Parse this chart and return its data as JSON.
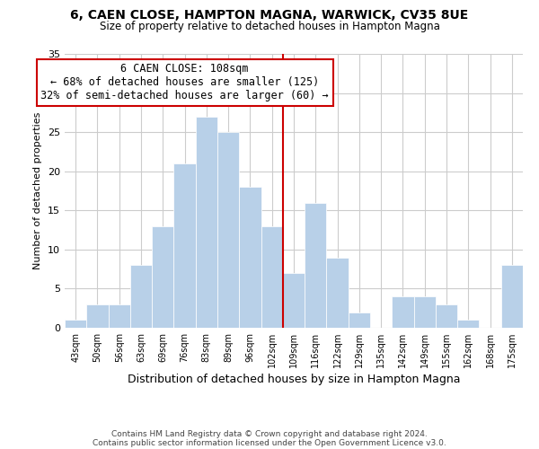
{
  "title1": "6, CAEN CLOSE, HAMPTON MAGNA, WARWICK, CV35 8UE",
  "title2": "Size of property relative to detached houses in Hampton Magna",
  "xlabel": "Distribution of detached houses by size in Hampton Magna",
  "ylabel": "Number of detached properties",
  "bar_labels": [
    "43sqm",
    "50sqm",
    "56sqm",
    "63sqm",
    "69sqm",
    "76sqm",
    "83sqm",
    "89sqm",
    "96sqm",
    "102sqm",
    "109sqm",
    "116sqm",
    "122sqm",
    "129sqm",
    "135sqm",
    "142sqm",
    "149sqm",
    "155sqm",
    "162sqm",
    "168sqm",
    "175sqm"
  ],
  "bar_values": [
    1,
    3,
    3,
    8,
    13,
    21,
    27,
    25,
    18,
    13,
    7,
    16,
    9,
    2,
    0,
    4,
    4,
    3,
    1,
    0,
    8
  ],
  "bar_color": "#b8d0e8",
  "bar_edge_color": "#ffffff",
  "reference_line_idx": 10,
  "annotation_title": "6 CAEN CLOSE: 108sqm",
  "annotation_line1": "← 68% of detached houses are smaller (125)",
  "annotation_line2": "32% of semi-detached houses are larger (60) →",
  "annotation_box_color": "#ffffff",
  "annotation_box_edge_color": "#cc0000",
  "vline_color": "#cc0000",
  "ylim": [
    0,
    35
  ],
  "yticks": [
    0,
    5,
    10,
    15,
    20,
    25,
    30,
    35
  ],
  "grid_color": "#cccccc",
  "footnote1": "Contains HM Land Registry data © Crown copyright and database right 2024.",
  "footnote2": "Contains public sector information licensed under the Open Government Licence v3.0.",
  "background_color": "#ffffff"
}
